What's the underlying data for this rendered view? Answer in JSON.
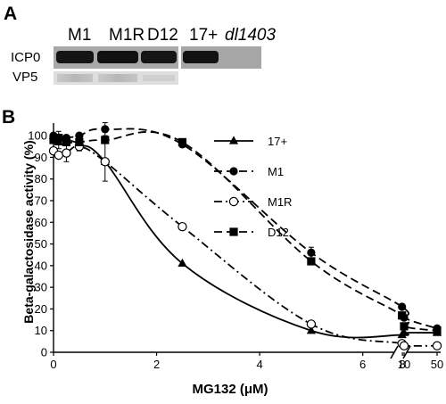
{
  "panel_a": {
    "letter": "A",
    "lanes": [
      "M1",
      "M1R",
      "D12",
      "17+"
    ],
    "mutant_lane": "dl1403",
    "row_labels": [
      "ICP0",
      "VP5"
    ]
  },
  "chart_data": {
    "type": "line",
    "panel_letter": "B",
    "xlabel": "MG132 (μM)",
    "ylabel": "Beta-galactosidase activity (%)",
    "xlim": [
      0,
      50
    ],
    "ylim": [
      0,
      105
    ],
    "x_axis_break": [
      6.75,
      50
    ],
    "x_ticks": [
      0,
      2,
      4,
      6,
      8,
      10,
      50
    ],
    "y_ticks": [
      0,
      10,
      20,
      30,
      40,
      50,
      60,
      70,
      80,
      90,
      100
    ],
    "legend_position": "right",
    "series": [
      {
        "name": "17+",
        "marker": "triangle",
        "line": "solid",
        "x": [
          0,
          0.1,
          0.25,
          0.5,
          1,
          2.5,
          5,
          7.5,
          10,
          50
        ],
        "y": [
          100,
          97,
          98,
          96,
          88,
          41,
          10,
          8,
          9,
          9
        ]
      },
      {
        "name": "M1",
        "marker": "filled-circle",
        "line": "dashed",
        "x": [
          0,
          0.1,
          0.25,
          0.5,
          1,
          2.5,
          5,
          7.5,
          10,
          50
        ],
        "y": [
          100,
          99,
          99,
          100,
          103,
          96,
          46,
          21,
          16,
          11
        ]
      },
      {
        "name": "M1R",
        "marker": "open-circle",
        "line": "dash-dot",
        "x": [
          0,
          0.1,
          0.25,
          0.5,
          1,
          2.5,
          5,
          7.5,
          10,
          50
        ],
        "y": [
          93,
          91,
          92,
          95,
          88,
          58,
          13,
          4,
          3,
          3
        ]
      },
      {
        "name": "D12",
        "marker": "filled-square",
        "line": "dashed",
        "x": [
          0,
          0.1,
          0.25,
          0.5,
          1,
          2.5,
          5,
          7.5,
          10,
          50
        ],
        "y": [
          98,
          99,
          97,
          97,
          98,
          97,
          42,
          17,
          12,
          10
        ]
      }
    ]
  }
}
